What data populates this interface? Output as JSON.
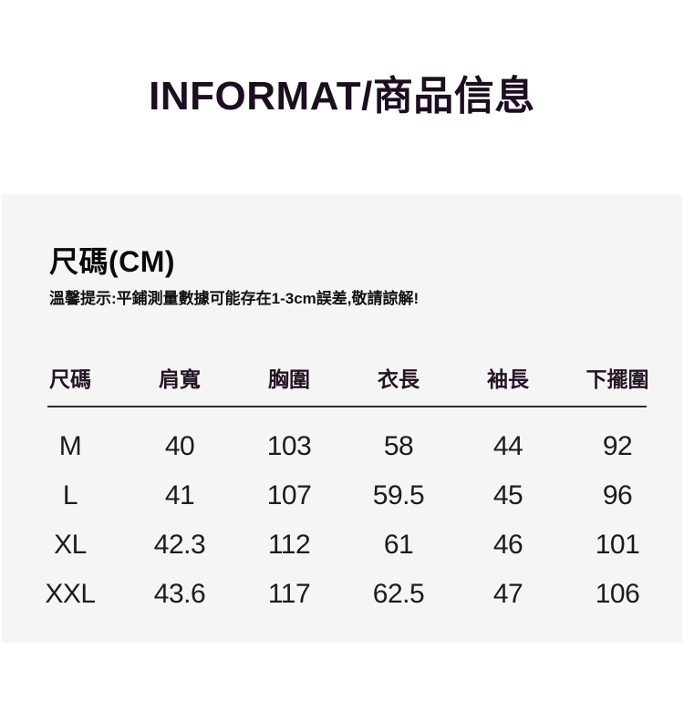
{
  "title": "INFORMAT/商品信息",
  "size_section": {
    "heading": "尺碼(CM)",
    "note": "溫馨提示:平鋪測量數據可能存在1-3cm誤差,敬請諒解!"
  },
  "size_table": {
    "unit": "CM",
    "columns": [
      "尺碼",
      "肩寬",
      "胸圍",
      "衣長",
      "袖長",
      "下擺圍"
    ],
    "rows": [
      [
        "M",
        "40",
        "103",
        "58",
        "44",
        "92"
      ],
      [
        "L",
        "41",
        "107",
        "59.5",
        "45",
        "96"
      ],
      [
        "XL",
        "42.3",
        "112",
        "61",
        "46",
        "101"
      ],
      [
        "XXL",
        "43.6",
        "117",
        "62.5",
        "47",
        "106"
      ]
    ]
  },
  "colors": {
    "page_bg": "#ffffff",
    "panel_bg": "#f5f5f6",
    "title_text": "#1d0d21",
    "heading_text": "#0b0b0b",
    "table_text": "#1c1c1c",
    "rule": "#2d2d2d"
  }
}
